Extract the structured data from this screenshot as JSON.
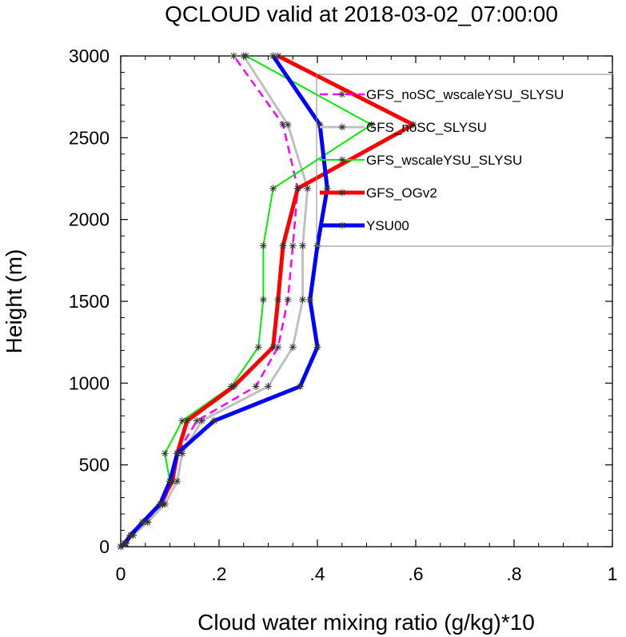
{
  "chart_data": {
    "type": "line",
    "title": "QCLOUD valid at 2018-03-02_07:00:00",
    "xlabel": "Cloud water mixing ratio (g/kg)*10",
    "ylabel": "Height (m)",
    "xlim": [
      0,
      1
    ],
    "ylim": [
      0,
      3000
    ],
    "x_ticks": [
      0,
      0.2,
      0.4,
      0.6,
      0.8,
      1
    ],
    "x_tick_labels": [
      "0",
      ".2",
      ".4",
      ".6",
      ".8",
      "1"
    ],
    "y_ticks": [
      0,
      500,
      1000,
      1500,
      2000,
      2500,
      3000
    ],
    "y_tick_labels": [
      "0",
      "500",
      "1000",
      "1500",
      "2000",
      "2500",
      "3000"
    ],
    "y": [
      0,
      20,
      70,
      150,
      260,
      400,
      570,
      770,
      980,
      1220,
      1510,
      1840,
      2190,
      2580,
      3000
    ],
    "grid": false,
    "legend_position": "top-right",
    "series": [
      {
        "name": "GFS_noSC_wscaleYSU_SLYSU",
        "color": "#ff00ff",
        "dash": "dashed",
        "width": 2.5,
        "x": [
          0.0,
          0.008,
          0.025,
          0.055,
          0.085,
          0.105,
          0.115,
          0.155,
          0.275,
          0.32,
          0.34,
          0.35,
          0.36,
          0.33,
          0.23
        ]
      },
      {
        "name": "GFS_noSC_SLYSU",
        "color": "#c0c0c0",
        "dash": "solid",
        "width": 3,
        "x": [
          0.0,
          0.01,
          0.025,
          0.055,
          0.09,
          0.115,
          0.125,
          0.165,
          0.3,
          0.35,
          0.37,
          0.37,
          0.38,
          0.34,
          0.25
        ]
      },
      {
        "name": "GFS_wscaleYSU_SLYSU",
        "color": "#00ee00",
        "dash": "solid",
        "width": 2,
        "x": [
          0.0,
          0.01,
          0.02,
          0.045,
          0.085,
          0.1,
          0.09,
          0.125,
          0.225,
          0.28,
          0.29,
          0.29,
          0.31,
          0.51,
          0.255
        ]
      },
      {
        "name": "GFS_OGv2",
        "color": "#ff0000",
        "dash": "solid",
        "width": 5,
        "x": [
          0.0,
          0.01,
          0.02,
          0.045,
          0.08,
          0.105,
          0.115,
          0.135,
          0.23,
          0.31,
          0.32,
          0.33,
          0.36,
          0.595,
          0.32
        ]
      },
      {
        "name": "YSU00",
        "color": "#0000ff",
        "dash": "solid",
        "width": 5,
        "x": [
          0.0,
          0.008,
          0.02,
          0.045,
          0.08,
          0.1,
          0.115,
          0.19,
          0.365,
          0.4,
          0.385,
          0.4,
          0.42,
          0.405,
          0.31
        ]
      }
    ]
  }
}
